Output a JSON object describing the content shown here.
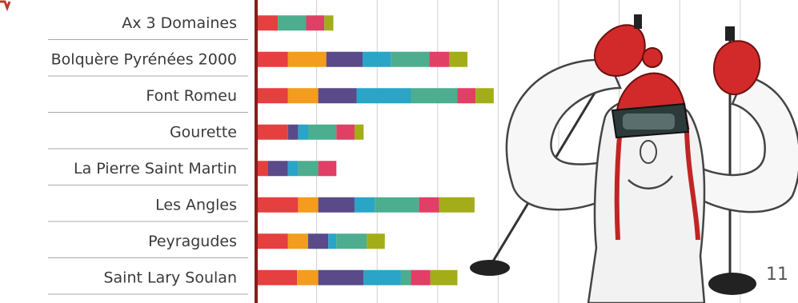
{
  "chart_data": {
    "type": "bar",
    "orientation": "horizontal",
    "stacked": true,
    "title": "",
    "xlabel": "",
    "ylabel": "",
    "xlim": [
      0,
      12
    ],
    "grid": true,
    "legend": "none",
    "categories": [
      "Ax 3 Domaines",
      "Bolquère Pyrénées 2000",
      "Font Romeu",
      "Gourette",
      "La Pierre Saint Martin",
      "Les Angles",
      "Peyragudes",
      "Saint Lary Soulan"
    ],
    "series": [
      {
        "color": "#e53f3f",
        "values": [
          1.0,
          1.5,
          1.5,
          1.5,
          0.5,
          2.0,
          1.5,
          1.95
        ]
      },
      {
        "color": "#f39c1e",
        "values": [
          0.0,
          1.9,
          1.5,
          0.0,
          0.0,
          1.0,
          1.0,
          1.05
        ]
      },
      {
        "color": "#5a4a8a",
        "values": [
          0.0,
          1.8,
          1.9,
          0.5,
          1.0,
          1.8,
          1.0,
          2.25
        ]
      },
      {
        "color": "#2aa4c7",
        "values": [
          0.0,
          1.4,
          2.7,
          0.5,
          0.5,
          1.0,
          0.4,
          1.85
        ]
      },
      {
        "color": "#4cae8e",
        "values": [
          1.4,
          1.9,
          2.3,
          1.4,
          1.0,
          2.2,
          1.5,
          0.5
        ]
      },
      {
        "color": "#e03f66",
        "values": [
          0.9,
          1.0,
          0.9,
          0.9,
          0.9,
          1.0,
          0.0,
          0.95
        ]
      },
      {
        "color": "#a3ad1a",
        "values": [
          0.45,
          0.9,
          0.9,
          0.45,
          0.0,
          1.75,
          0.9,
          1.35
        ]
      }
    ]
  },
  "page_number": "11",
  "colors": {
    "axis": "#8b1a1a",
    "grid": "#d0d0d0",
    "label": "#3a3a3a"
  },
  "illustration": {
    "icon": "skier-illustration"
  }
}
